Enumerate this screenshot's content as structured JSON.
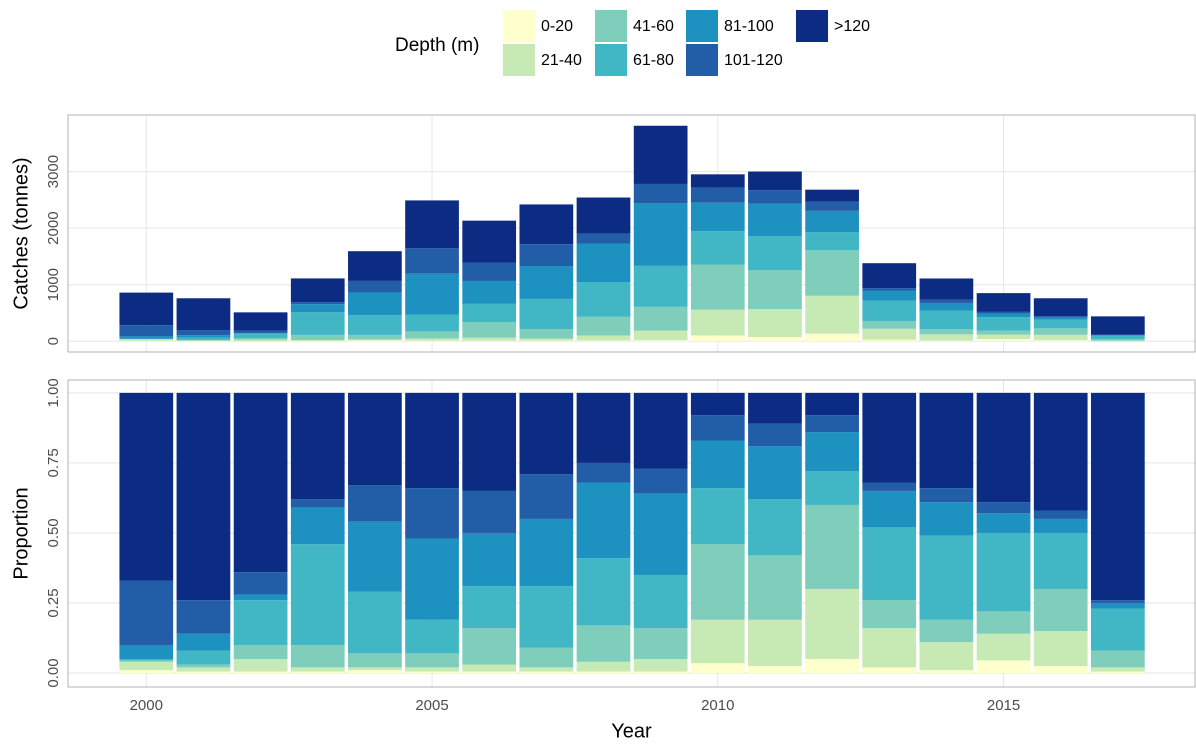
{
  "chart_data": [
    {
      "type": "bar",
      "stacked": true,
      "ylabel": "Catches (tonnes)",
      "legend_title": "Depth (m)",
      "grid": true,
      "x": [
        2000,
        2001,
        2002,
        2003,
        2004,
        2005,
        2006,
        2007,
        2008,
        2009,
        2010,
        2011,
        2012,
        2013,
        2014,
        2015,
        2016,
        2017
      ],
      "xlim": [
        1998.63,
        2018.35
      ],
      "xticks": [
        2000,
        2005,
        2010,
        2015
      ],
      "ylim": [
        -190,
        4000
      ],
      "yticks": [
        0,
        1000,
        2000,
        3000
      ],
      "series": [
        {
          "name": "0-20",
          "color": "#ffffcc",
          "values": [
            9,
            4,
            3,
            6,
            16,
            12,
            11,
            12,
            13,
            19,
            103,
            75,
            134,
            28,
            11,
            38,
            19,
            2
          ]
        },
        {
          "name": "21-40",
          "color": "#c7e9b4",
          "values": [
            26,
            11,
            23,
            17,
            16,
            37,
            53,
            36,
            89,
            171,
            457,
            495,
            670,
            193,
            111,
            81,
            95,
            7
          ]
        },
        {
          "name": "41-60",
          "color": "#7fcdbb",
          "values": [
            4,
            8,
            26,
            89,
            80,
            125,
            277,
            169,
            330,
            419,
            797,
            690,
            804,
            138,
            89,
            68,
            114,
            26
          ]
        },
        {
          "name": "61-80",
          "color": "#41b6c4",
          "values": [
            4,
            38,
            82,
            400,
            350,
            299,
            320,
            532,
            610,
            724,
            590,
            600,
            322,
            359,
            333,
            238,
            152,
            66
          ]
        },
        {
          "name": "81-100",
          "color": "#1d91c0",
          "values": [
            43,
            46,
            10,
            144,
            398,
            722,
            405,
            581,
            686,
            1105,
            502,
            570,
            375,
            179,
            133,
            60,
            38,
            9
          ]
        },
        {
          "name": "101-120",
          "color": "#225ea8",
          "values": [
            198,
            91,
            41,
            33,
            207,
            448,
            320,
            387,
            178,
            343,
            266,
            240,
            161,
            41,
            56,
            34,
            23,
            4
          ]
        },
        {
          "name": ">120",
          "color": "#0c2c84",
          "values": [
            576,
            562,
            326,
            422,
            525,
            847,
            746,
            702,
            635,
            1029,
            236,
            330,
            214,
            442,
            377,
            332,
            319,
            326
          ]
        }
      ]
    },
    {
      "type": "bar",
      "stacked": true,
      "ylabel": "Proportion",
      "xlabel": "Year",
      "grid": true,
      "x": [
        2000,
        2001,
        2002,
        2003,
        2004,
        2005,
        2006,
        2007,
        2008,
        2009,
        2010,
        2011,
        2012,
        2013,
        2014,
        2015,
        2016,
        2017
      ],
      "xlim": [
        1998.63,
        2018.35
      ],
      "xticks": [
        2000,
        2005,
        2010,
        2015
      ],
      "ylim": [
        -0.05,
        1.046
      ],
      "yticks": [
        {
          "value": 0,
          "label": "0.00"
        },
        {
          "value": 0.25,
          "label": "0.25"
        },
        {
          "value": 0.5,
          "label": "0.50"
        },
        {
          "value": 0.75,
          "label": "0.75"
        },
        {
          "value": 1,
          "label": "1.00"
        }
      ],
      "series": [
        {
          "color": "#ffffcc",
          "values": [
            0.01,
            0.005,
            0.005,
            0.005,
            0.01,
            0.005,
            0.005,
            0.005,
            0.005,
            0.005,
            0.035,
            0.025,
            0.05,
            0.02,
            0.01,
            0.045,
            0.025,
            0.005
          ]
        },
        {
          "color": "#c7e9b4",
          "values": [
            0.03,
            0.015,
            0.045,
            0.015,
            0.01,
            0.015,
            0.025,
            0.015,
            0.035,
            0.045,
            0.155,
            0.165,
            0.25,
            0.14,
            0.1,
            0.095,
            0.125,
            0.015
          ]
        },
        {
          "color": "#7fcdbb",
          "values": [
            0.005,
            0.01,
            0.05,
            0.08,
            0.05,
            0.05,
            0.13,
            0.07,
            0.13,
            0.11,
            0.27,
            0.23,
            0.3,
            0.1,
            0.08,
            0.08,
            0.15,
            0.06
          ]
        },
        {
          "color": "#41b6c4",
          "values": [
            0.005,
            0.05,
            0.16,
            0.36,
            0.22,
            0.12,
            0.15,
            0.22,
            0.24,
            0.19,
            0.2,
            0.2,
            0.12,
            0.26,
            0.3,
            0.28,
            0.2,
            0.15
          ]
        },
        {
          "color": "#1d91c0",
          "values": [
            0.05,
            0.06,
            0.02,
            0.13,
            0.25,
            0.29,
            0.19,
            0.24,
            0.27,
            0.29,
            0.17,
            0.19,
            0.14,
            0.13,
            0.12,
            0.07,
            0.05,
            0.02
          ]
        },
        {
          "color": "#225ea8",
          "values": [
            0.23,
            0.12,
            0.08,
            0.03,
            0.13,
            0.18,
            0.15,
            0.16,
            0.07,
            0.09,
            0.09,
            0.08,
            0.06,
            0.03,
            0.05,
            0.04,
            0.03,
            0.01
          ]
        },
        {
          "color": "#0c2c84",
          "values": [
            0.67,
            0.74,
            0.64,
            0.38,
            0.33,
            0.34,
            0.35,
            0.29,
            0.25,
            0.27,
            0.08,
            0.11,
            0.08,
            0.32,
            0.34,
            0.39,
            0.42,
            0.74
          ]
        }
      ]
    }
  ]
}
